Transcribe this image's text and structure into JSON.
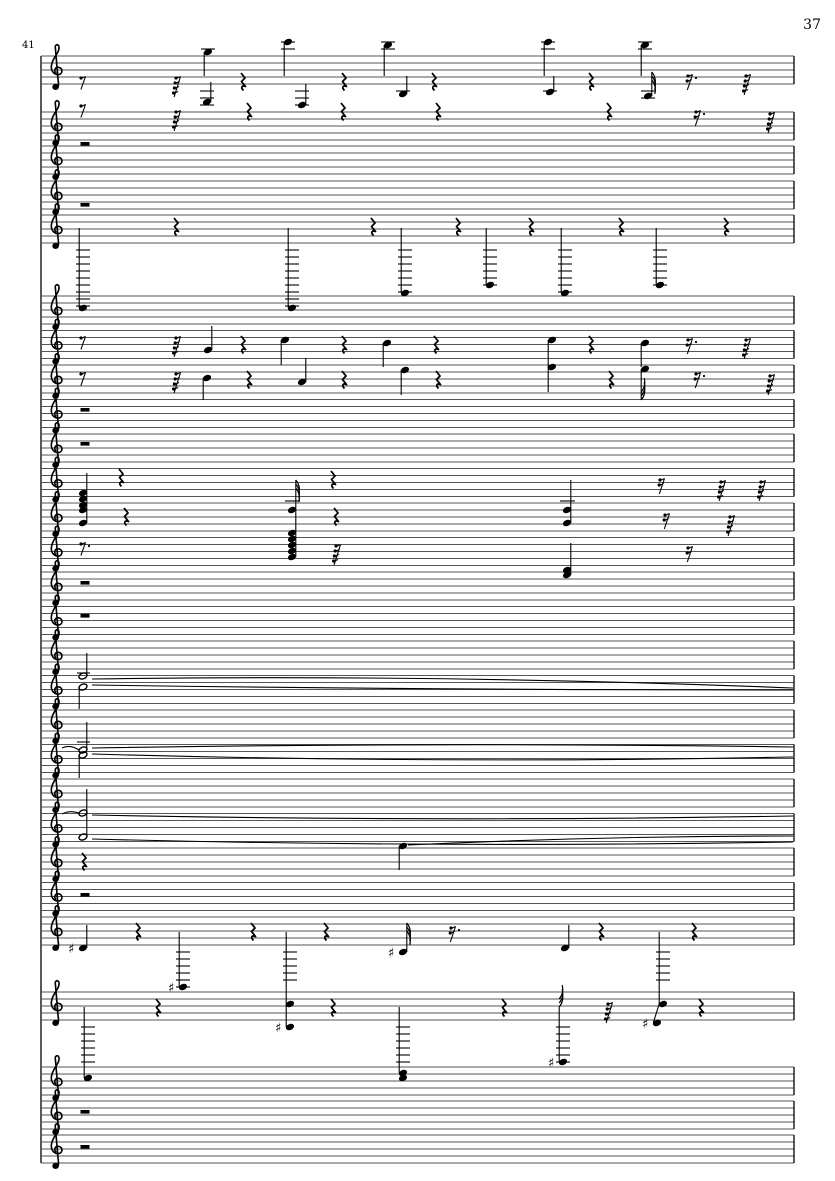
{
  "page": {
    "number": "37"
  },
  "system": {
    "measure_number": "41",
    "clef": "treble",
    "accidental": "sharp"
  },
  "colors": {
    "ink": "#000000",
    "staff_line": "#555555",
    "paper": "#ffffff"
  }
}
